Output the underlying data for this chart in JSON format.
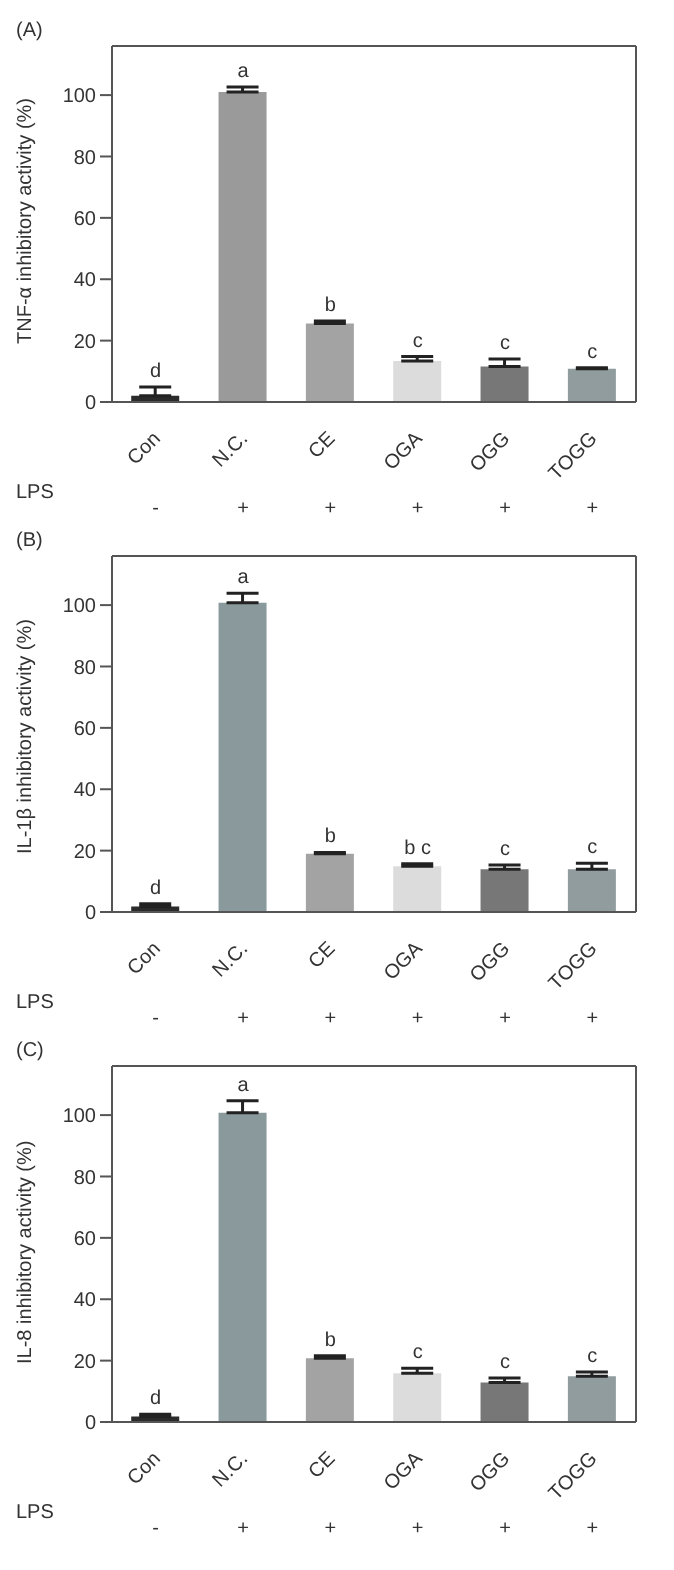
{
  "chart_data": [
    {
      "type": "bar",
      "title": "(A)",
      "ylabel": "TNF-α inhibitory activity (%)",
      "categories": [
        "Con",
        "N.C.",
        "CE",
        "OGA",
        "OGG",
        "TOGG"
      ],
      "values": [
        2,
        101,
        25.6,
        13.4,
        11.6,
        10.8
      ],
      "errors": [
        [
          2,
          4.9
        ],
        [
          101,
          102.6
        ],
        [
          25.6,
          26.4
        ],
        [
          13.4,
          14.8
        ],
        [
          11.6,
          14
        ],
        [
          10.8,
          11.2
        ]
      ],
      "colors": [
        "#2b2b2b",
        "#9a9a9a",
        "#a3a3a3",
        "#dcdcdc",
        "#777777",
        "#909c9e"
      ],
      "ylim": [
        0,
        116
      ],
      "yticks": [
        0,
        20,
        40,
        60,
        80,
        100
      ],
      "grid": false,
      "legend": false,
      "annotations": [
        {
          "text": "d",
          "x": "Con",
          "y": 4.9
        },
        {
          "text": "a",
          "x": "N.C.",
          "y": 102.6
        },
        {
          "text": "b",
          "x": "CE",
          "y": 26.4
        },
        {
          "text": "c",
          "x": "OGA",
          "y": 14.8
        },
        {
          "text": "c",
          "x": "OGG",
          "y": 14
        },
        {
          "text": "c",
          "x": "TOGG",
          "y": 11.2
        },
        "LPS",
        "-",
        "+",
        "+",
        "+",
        "+",
        "+"
      ]
    },
    {
      "type": "bar",
      "title": "(B)",
      "ylabel": "IL-1β inhibitory activity (%)",
      "categories": [
        "Con",
        "N.C.",
        "CE",
        "OGA",
        "OGG",
        "TOGG"
      ],
      "values": [
        1.8,
        100.8,
        19,
        14.9,
        13.9,
        13.9
      ],
      "errors": [
        [
          1.8,
          2.7
        ],
        [
          100.8,
          103.9
        ],
        [
          19,
          19.4
        ],
        [
          14.9,
          15.7
        ],
        [
          13.9,
          15.3
        ],
        [
          13.9,
          15.9
        ]
      ],
      "colors": [
        "#2b2b2b",
        "#8a9a9c",
        "#a3a3a3",
        "#dcdcdc",
        "#777777",
        "#909c9e"
      ],
      "ylim": [
        0,
        116
      ],
      "yticks": [
        0,
        20,
        40,
        60,
        80,
        100
      ],
      "grid": false,
      "legend": false,
      "annotations": [
        {
          "text": "d",
          "x": "Con",
          "y": 2.7
        },
        {
          "text": "a",
          "x": "N.C.",
          "y": 103.9
        },
        {
          "text": "b",
          "x": "CE",
          "y": 19.4
        },
        {
          "text": "b c",
          "x": "OGA",
          "y": 15.7
        },
        {
          "text": "c",
          "x": "OGG",
          "y": 15.3
        },
        {
          "text": "c",
          "x": "TOGG",
          "y": 15.9
        },
        "LPS",
        "-",
        "+",
        "+",
        "+",
        "+",
        "+"
      ]
    },
    {
      "type": "bar",
      "title": "(C)",
      "ylabel": "IL-8 inhibitory activity (%)",
      "categories": [
        "Con",
        "N.C.",
        "CE",
        "OGA",
        "OGG",
        "TOGG"
      ],
      "values": [
        1.8,
        100.8,
        20.8,
        15.9,
        12.9,
        14.9
      ],
      "errors": [
        [
          1.8,
          2.5
        ],
        [
          100.8,
          104.7
        ],
        [
          20.8,
          21.6
        ],
        [
          15.9,
          17.5
        ],
        [
          12.9,
          14.3
        ],
        [
          14.9,
          16.3
        ]
      ],
      "colors": [
        "#2b2b2b",
        "#8a9a9c",
        "#a3a3a3",
        "#dcdcdc",
        "#777777",
        "#909c9e"
      ],
      "ylim": [
        0,
        116
      ],
      "yticks": [
        0,
        20,
        40,
        60,
        80,
        100
      ],
      "grid": false,
      "legend": false,
      "annotations": [
        {
          "text": "d",
          "x": "Con",
          "y": 2.5
        },
        {
          "text": "a",
          "x": "N.C.",
          "y": 104.7
        },
        {
          "text": "b",
          "x": "CE",
          "y": 21.6
        },
        {
          "text": "c",
          "x": "OGA",
          "y": 17.5
        },
        {
          "text": "c",
          "x": "OGG",
          "y": 14.3
        },
        {
          "text": "c",
          "x": "TOGG",
          "y": 16.3
        },
        "LPS",
        "-",
        "+",
        "+",
        "+",
        "+",
        "+"
      ]
    }
  ]
}
